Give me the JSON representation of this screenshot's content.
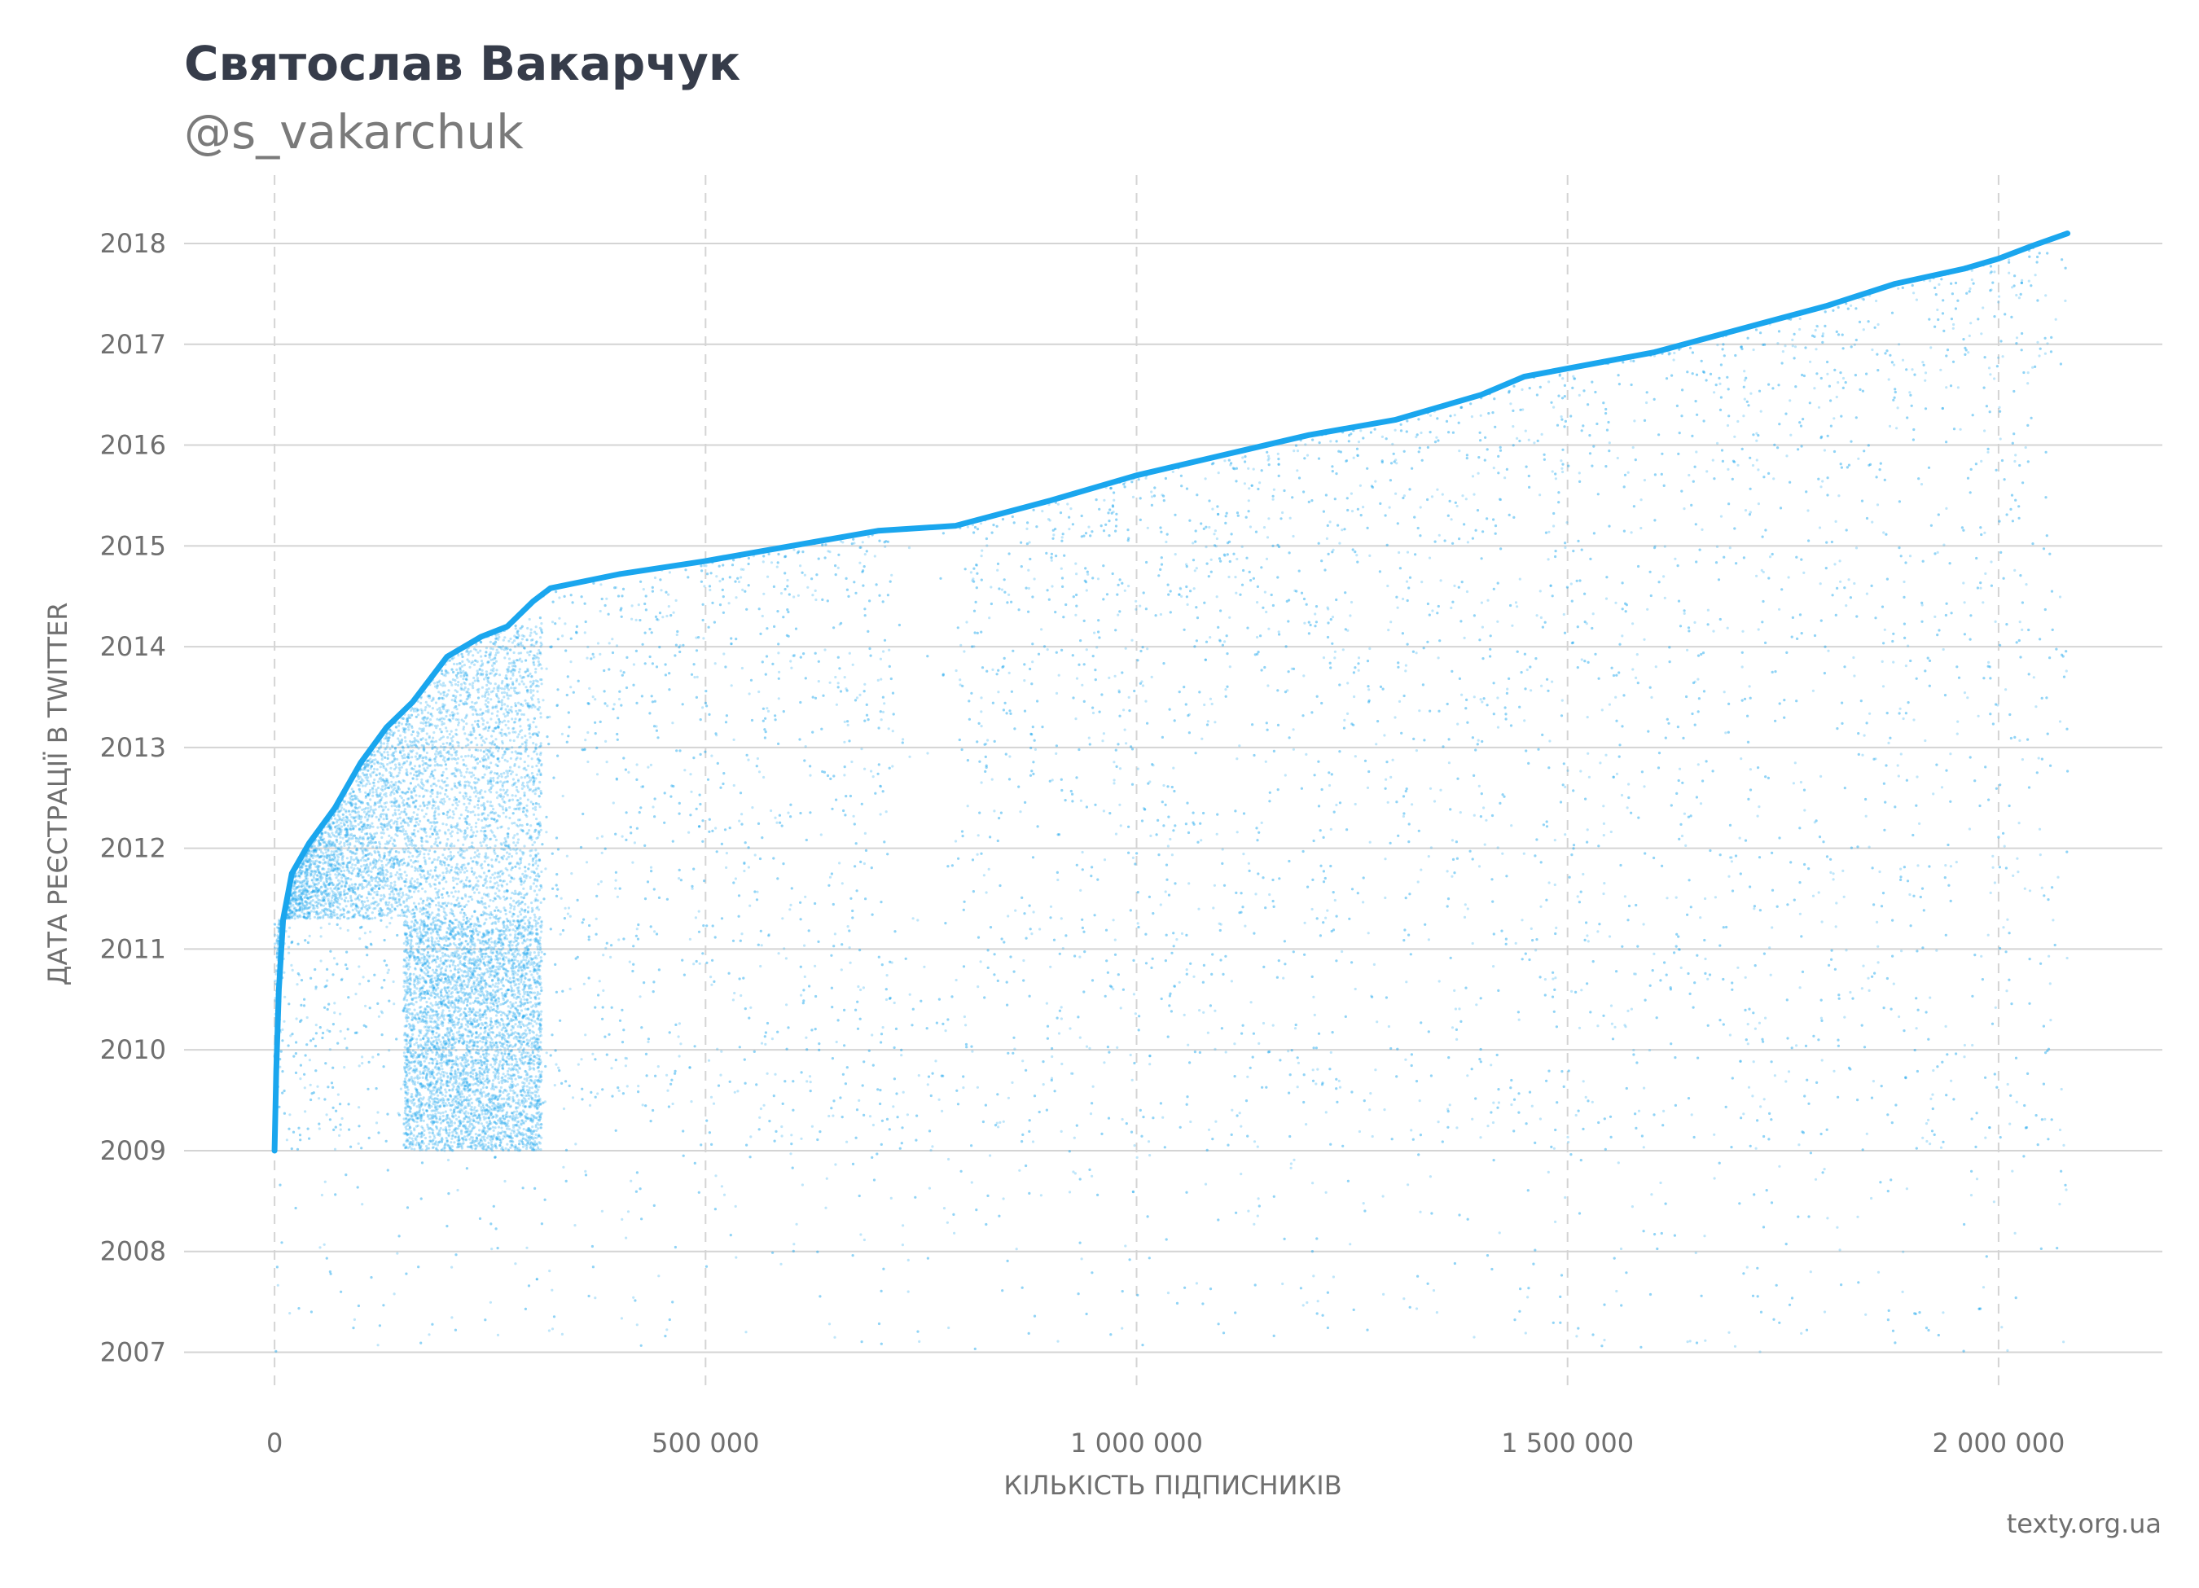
{
  "header": {
    "title": "Святослав Вакарчук",
    "subtitle": "@s_vakarchuk"
  },
  "footer": {
    "source": "texty.org.ua"
  },
  "colors": {
    "points": "#1aa6ee",
    "grid": "#d4d4d4",
    "text": "#6f6f6f",
    "title": "#363c4a"
  },
  "chart_data": {
    "type": "scatter",
    "xlabel": "КІЛЬКІСТЬ ПІДПИСНИКІВ",
    "ylabel": "ДАТА РЕЄСТРАЦІЇ В TWITTER",
    "xlim": [
      -105000,
      2190000
    ],
    "ylim": [
      2006.6,
      2018.8
    ],
    "x_ticks": [
      {
        "value": 0,
        "label": "0"
      },
      {
        "value": 500000,
        "label": "500 000"
      },
      {
        "value": 1000000,
        "label": "1 000 000"
      },
      {
        "value": 1500000,
        "label": "1 500 000"
      },
      {
        "value": 2000000,
        "label": "2 000 000"
      }
    ],
    "y_ticks": [
      {
        "value": 2007,
        "label": "2007"
      },
      {
        "value": 2008,
        "label": "2008"
      },
      {
        "value": 2009,
        "label": "2009"
      },
      {
        "value": 2010,
        "label": "2010"
      },
      {
        "value": 2011,
        "label": "2011"
      },
      {
        "value": 2012,
        "label": "2012"
      },
      {
        "value": 2013,
        "label": "2013"
      },
      {
        "value": 2014,
        "label": "2014"
      },
      {
        "value": 2015,
        "label": "2015"
      },
      {
        "value": 2016,
        "label": "2016"
      },
      {
        "value": 2017,
        "label": "2017"
      },
      {
        "value": 2018,
        "label": "2018"
      }
    ],
    "grid": true,
    "series": [
      {
        "envelope": [
          [
            0,
            2009.0
          ],
          [
            2000,
            2009.8
          ],
          [
            5000,
            2010.6
          ],
          [
            10000,
            2011.3
          ],
          [
            20000,
            2011.75
          ],
          [
            40000,
            2012.05
          ],
          [
            70000,
            2012.4
          ],
          [
            100000,
            2012.85
          ],
          [
            130000,
            2013.2
          ],
          [
            160000,
            2013.45
          ],
          [
            200000,
            2013.9
          ],
          [
            240000,
            2014.1
          ],
          [
            270000,
            2014.2
          ],
          [
            300000,
            2014.45
          ],
          [
            320000,
            2014.58
          ],
          [
            400000,
            2014.72
          ],
          [
            500000,
            2014.85
          ],
          [
            600000,
            2015.0
          ],
          [
            700000,
            2015.15
          ],
          [
            790000,
            2015.2
          ],
          [
            900000,
            2015.45
          ],
          [
            1000000,
            2015.7
          ],
          [
            1100000,
            2015.9
          ],
          [
            1200000,
            2016.1
          ],
          [
            1300000,
            2016.25
          ],
          [
            1400000,
            2016.5
          ],
          [
            1450000,
            2016.68
          ],
          [
            1600000,
            2016.92
          ],
          [
            1700000,
            2017.15
          ],
          [
            1800000,
            2017.38
          ],
          [
            1880000,
            2017.6
          ],
          [
            1960000,
            2017.75
          ],
          [
            2000000,
            2017.85
          ],
          [
            2040000,
            2017.98
          ],
          [
            2080000,
            2018.1
          ]
        ],
        "dense_bands": [
          {
            "x_from": 0,
            "x_to": 310000,
            "y_from": 2011.3,
            "y_to": 2014.2
          },
          {
            "x_from": 150000,
            "x_to": 310000,
            "y_from": 2009.0,
            "y_to": 2011.3
          }
        ],
        "sparse_gap": {
          "x_from": 720000,
          "x_to": 790000,
          "y_from": 2011.0,
          "y_to": 2015.15
        }
      }
    ]
  }
}
